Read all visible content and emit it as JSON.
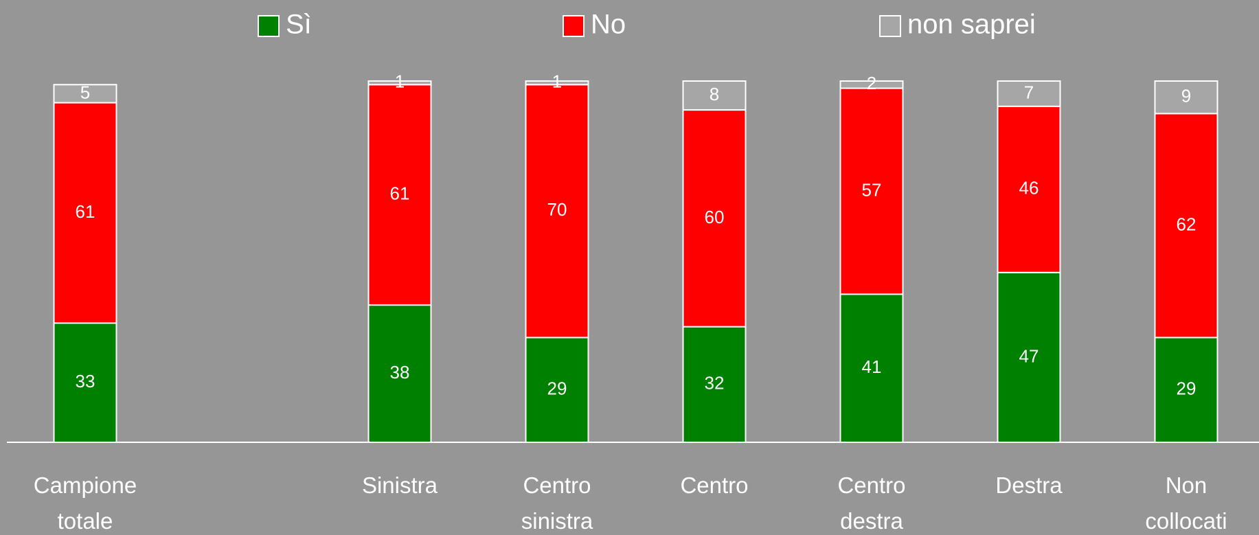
{
  "chart_data": {
    "type": "stacked_bar",
    "categories": [
      "Campione\ntotale",
      null,
      "Sinistra",
      "Centro\nsinistra",
      "Centro",
      "Centro\ndestra",
      "Destra",
      "Non\ncollocati"
    ],
    "series": [
      {
        "name": "Sì",
        "color": "#008000",
        "values": [
          33,
          null,
          38,
          29,
          32,
          41,
          47,
          29
        ]
      },
      {
        "name": "No",
        "color": "#ff0000",
        "values": [
          61,
          null,
          61,
          70,
          60,
          57,
          46,
          62
        ]
      },
      {
        "name": "non saprei",
        "color": "#a6a6a6",
        "values": [
          5,
          null,
          1,
          1,
          8,
          2,
          7,
          9
        ]
      }
    ],
    "ylim": [
      0,
      100
    ],
    "legend": "top"
  }
}
